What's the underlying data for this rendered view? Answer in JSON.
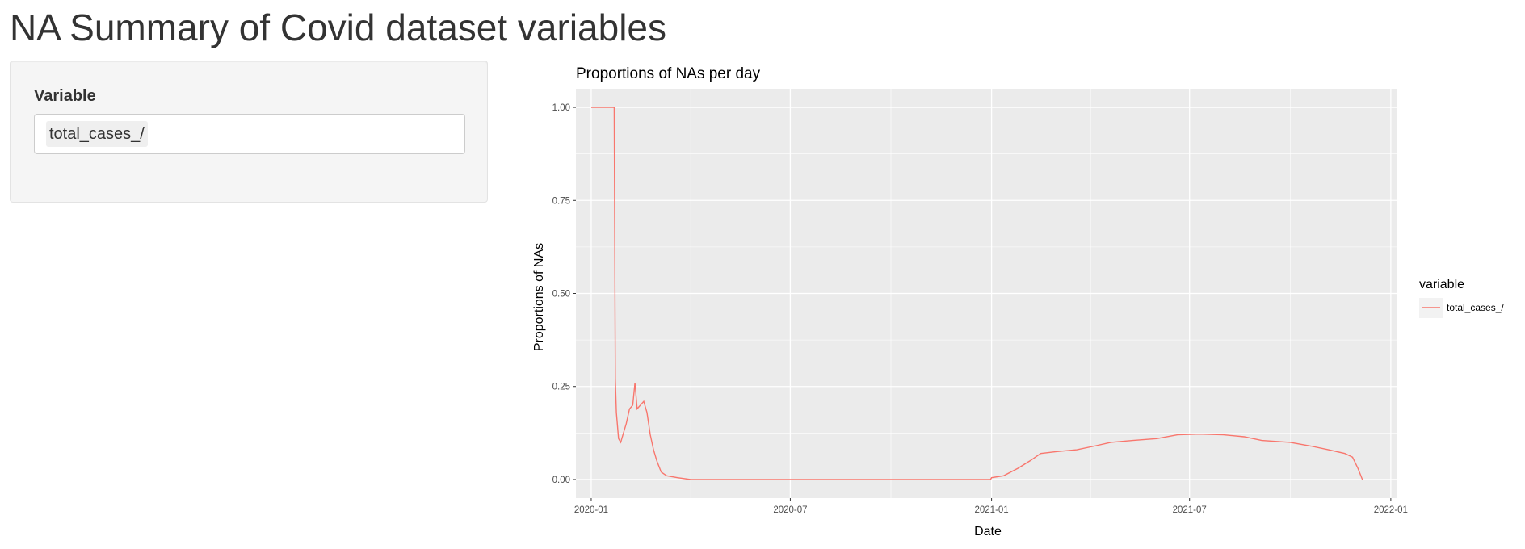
{
  "page": {
    "title": "NA Summary of Covid dataset variables"
  },
  "sidebar": {
    "variable_label": "Variable",
    "selected_variable": "total_cases_/"
  },
  "colors": {
    "series_line": "#F8766D",
    "panel_background": "#EBEBEB",
    "grid_line": "#FFFFFF",
    "sidebar_background": "#F5F5F5"
  },
  "chart_data": {
    "type": "line",
    "title": "Proportions of NAs per day",
    "xlabel": "Date",
    "ylabel": "Proportions of NAs",
    "x_type": "date",
    "xlim": [
      "2019-12-18",
      "2022-01-07"
    ],
    "ylim": [
      -0.05,
      1.05
    ],
    "x_ticks": [
      "2020-01-01",
      "2020-07-01",
      "2021-01-01",
      "2021-07-01",
      "2022-01-01"
    ],
    "x_tick_labels": [
      "2020-01",
      "2020-07",
      "2021-01",
      "2021-07",
      "2022-01"
    ],
    "y_ticks": [
      0,
      0.25,
      0.5,
      0.75,
      1.0
    ],
    "y_tick_labels": [
      "0.00",
      "0.25",
      "0.50",
      "0.75",
      "1.00"
    ],
    "grid": true,
    "legend": {
      "title": "variable",
      "position": "right"
    },
    "series": [
      {
        "name": "total_cases_/",
        "color": "#F8766D",
        "points": [
          [
            "2020-01-01",
            1.0
          ],
          [
            "2020-01-22",
            1.0
          ],
          [
            "2020-01-23",
            0.27
          ],
          [
            "2020-01-24",
            0.18
          ],
          [
            "2020-01-26",
            0.11
          ],
          [
            "2020-01-28",
            0.1
          ],
          [
            "2020-01-30",
            0.12
          ],
          [
            "2020-02-02",
            0.15
          ],
          [
            "2020-02-05",
            0.19
          ],
          [
            "2020-02-08",
            0.2
          ],
          [
            "2020-02-10",
            0.26
          ],
          [
            "2020-02-12",
            0.19
          ],
          [
            "2020-02-15",
            0.2
          ],
          [
            "2020-02-18",
            0.21
          ],
          [
            "2020-02-21",
            0.18
          ],
          [
            "2020-02-24",
            0.12
          ],
          [
            "2020-02-27",
            0.08
          ],
          [
            "2020-03-01",
            0.05
          ],
          [
            "2020-03-05",
            0.02
          ],
          [
            "2020-03-10",
            0.01
          ],
          [
            "2020-03-20",
            0.005
          ],
          [
            "2020-04-01",
            0.0
          ],
          [
            "2020-12-31",
            0.0
          ],
          [
            "2021-01-01",
            0.005
          ],
          [
            "2021-01-12",
            0.01
          ],
          [
            "2021-01-25",
            0.03
          ],
          [
            "2021-02-05",
            0.05
          ],
          [
            "2021-02-15",
            0.07
          ],
          [
            "2021-03-01",
            0.075
          ],
          [
            "2021-03-20",
            0.08
          ],
          [
            "2021-04-05",
            0.09
          ],
          [
            "2021-04-20",
            0.1
          ],
          [
            "2021-05-10",
            0.105
          ],
          [
            "2021-06-01",
            0.11
          ],
          [
            "2021-06-20",
            0.12
          ],
          [
            "2021-07-10",
            0.122
          ],
          [
            "2021-08-01",
            0.12
          ],
          [
            "2021-08-20",
            0.115
          ],
          [
            "2021-09-05",
            0.105
          ],
          [
            "2021-10-01",
            0.1
          ],
          [
            "2021-10-20",
            0.09
          ],
          [
            "2021-11-05",
            0.08
          ],
          [
            "2021-11-20",
            0.07
          ],
          [
            "2021-11-27",
            0.06
          ],
          [
            "2021-12-02",
            0.03
          ],
          [
            "2021-12-06",
            0.0
          ]
        ]
      }
    ]
  }
}
